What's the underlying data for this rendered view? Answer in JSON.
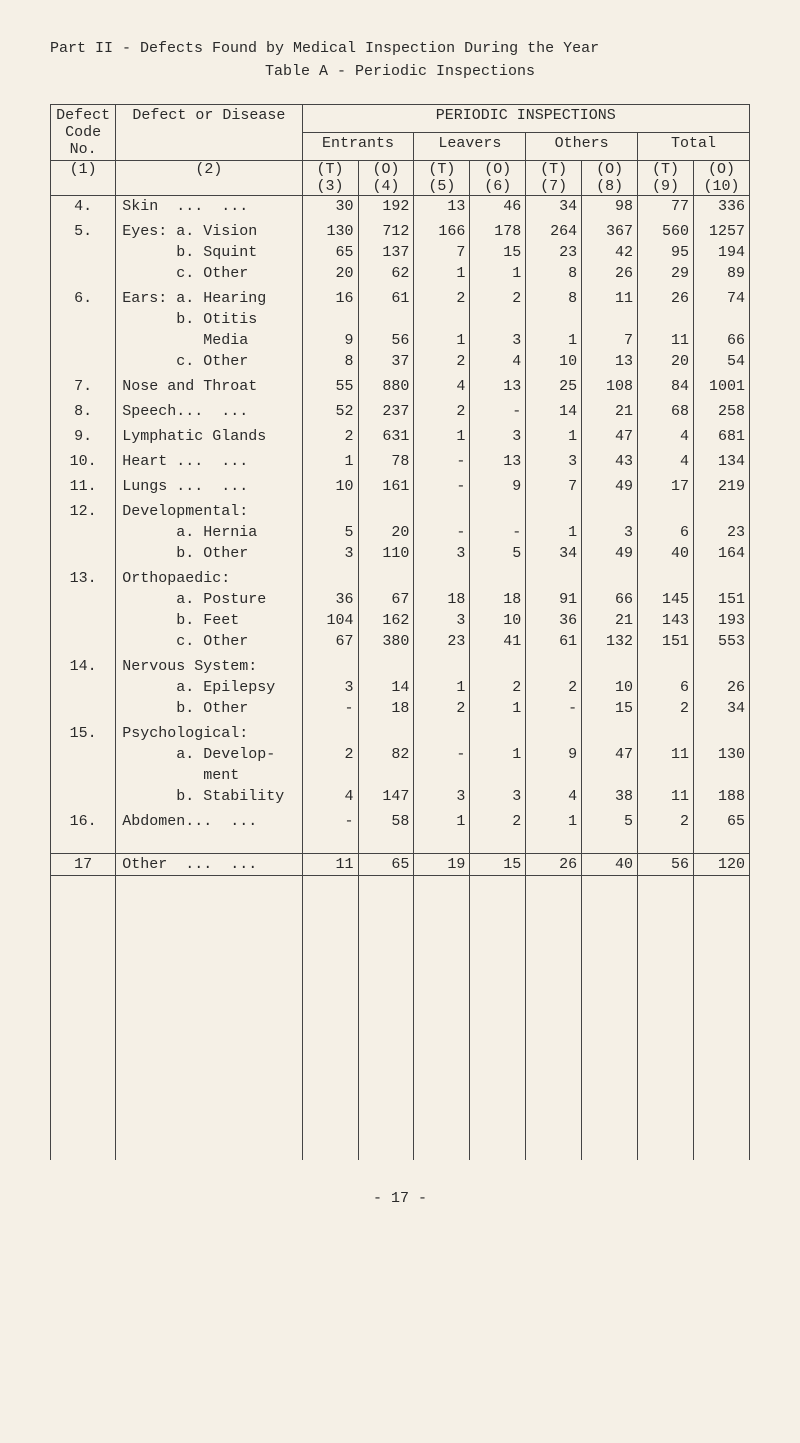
{
  "title": {
    "line1": "Part II - Defects Found by Medical Inspection During the Year",
    "line2": "Table A - Periodic Inspections"
  },
  "headers": {
    "defect_code": "Defect Code No.",
    "defect_disease": "Defect or Disease",
    "periodic": "PERIODIC INSPECTIONS",
    "groups": [
      "Entrants",
      "Leavers",
      "Others",
      "Total"
    ],
    "sub_t": "(T)",
    "sub_o": "(O)",
    "paren": [
      "(1)",
      "(2)",
      "(3)",
      "(4)",
      "(5)",
      "(6)",
      "(7)",
      "(8)",
      "(9)",
      "(10)"
    ]
  },
  "rows": [
    {
      "code": "4.",
      "label": "Skin  ...  ...",
      "v": [
        "30",
        "192",
        "13",
        "46",
        "34",
        "98",
        "77",
        "336"
      ]
    },
    {
      "code": "",
      "label": "",
      "v": [
        "",
        "",
        "",
        "",
        "",
        "",
        "",
        ""
      ]
    },
    {
      "code": "5.",
      "label": "Eyes: a. Vision",
      "v": [
        "130",
        "712",
        "166",
        "178",
        "264",
        "367",
        "560",
        "1257"
      ]
    },
    {
      "code": "",
      "label": "      b. Squint",
      "v": [
        "65",
        "137",
        "7",
        "15",
        "23",
        "42",
        "95",
        "194"
      ]
    },
    {
      "code": "",
      "label": "      c. Other",
      "v": [
        "20",
        "62",
        "1",
        "1",
        "8",
        "26",
        "29",
        "89"
      ]
    },
    {
      "code": "",
      "label": "",
      "v": [
        "",
        "",
        "",
        "",
        "",
        "",
        "",
        ""
      ]
    },
    {
      "code": "6.",
      "label": "Ears: a. Hearing",
      "v": [
        "16",
        "61",
        "2",
        "2",
        "8",
        "11",
        "26",
        "74"
      ]
    },
    {
      "code": "",
      "label": "      b. Otitis",
      "v": [
        "",
        "",
        "",
        "",
        "",
        "",
        "",
        ""
      ]
    },
    {
      "code": "",
      "label": "         Media",
      "v": [
        "9",
        "56",
        "1",
        "3",
        "1",
        "7",
        "11",
        "66"
      ]
    },
    {
      "code": "",
      "label": "      c. Other",
      "v": [
        "8",
        "37",
        "2",
        "4",
        "10",
        "13",
        "20",
        "54"
      ]
    },
    {
      "code": "",
      "label": "",
      "v": [
        "",
        "",
        "",
        "",
        "",
        "",
        "",
        ""
      ]
    },
    {
      "code": "7.",
      "label": "Nose and Throat",
      "v": [
        "55",
        "880",
        "4",
        "13",
        "25",
        "108",
        "84",
        "1001"
      ]
    },
    {
      "code": "",
      "label": "",
      "v": [
        "",
        "",
        "",
        "",
        "",
        "",
        "",
        ""
      ]
    },
    {
      "code": "8.",
      "label": "Speech...  ...",
      "v": [
        "52",
        "237",
        "2",
        "-",
        "14",
        "21",
        "68",
        "258"
      ]
    },
    {
      "code": "",
      "label": "",
      "v": [
        "",
        "",
        "",
        "",
        "",
        "",
        "",
        ""
      ]
    },
    {
      "code": "9.",
      "label": "Lymphatic Glands",
      "v": [
        "2",
        "631",
        "1",
        "3",
        "1",
        "47",
        "4",
        "681"
      ]
    },
    {
      "code": "",
      "label": "",
      "v": [
        "",
        "",
        "",
        "",
        "",
        "",
        "",
        ""
      ]
    },
    {
      "code": "10.",
      "label": "Heart ...  ...",
      "v": [
        "1",
        "78",
        "-",
        "13",
        "3",
        "43",
        "4",
        "134"
      ]
    },
    {
      "code": "",
      "label": "",
      "v": [
        "",
        "",
        "",
        "",
        "",
        "",
        "",
        ""
      ]
    },
    {
      "code": "11.",
      "label": "Lungs ...  ...",
      "v": [
        "10",
        "161",
        "-",
        "9",
        "7",
        "49",
        "17",
        "219"
      ]
    },
    {
      "code": "",
      "label": "",
      "v": [
        "",
        "",
        "",
        "",
        "",
        "",
        "",
        ""
      ]
    },
    {
      "code": "12.",
      "label": "Developmental:",
      "v": [
        "",
        "",
        "",
        "",
        "",
        "",
        "",
        ""
      ]
    },
    {
      "code": "",
      "label": "      a. Hernia",
      "v": [
        "5",
        "20",
        "-",
        "-",
        "1",
        "3",
        "6",
        "23"
      ]
    },
    {
      "code": "",
      "label": "      b. Other",
      "v": [
        "3",
        "110",
        "3",
        "5",
        "34",
        "49",
        "40",
        "164"
      ]
    },
    {
      "code": "",
      "label": "",
      "v": [
        "",
        "",
        "",
        "",
        "",
        "",
        "",
        ""
      ]
    },
    {
      "code": "13.",
      "label": "Orthopaedic:",
      "v": [
        "",
        "",
        "",
        "",
        "",
        "",
        "",
        ""
      ]
    },
    {
      "code": "",
      "label": "      a. Posture",
      "v": [
        "36",
        "67",
        "18",
        "18",
        "91",
        "66",
        "145",
        "151"
      ]
    },
    {
      "code": "",
      "label": "      b. Feet",
      "v": [
        "104",
        "162",
        "3",
        "10",
        "36",
        "21",
        "143",
        "193"
      ]
    },
    {
      "code": "",
      "label": "      c. Other",
      "v": [
        "67",
        "380",
        "23",
        "41",
        "61",
        "132",
        "151",
        "553"
      ]
    },
    {
      "code": "",
      "label": "",
      "v": [
        "",
        "",
        "",
        "",
        "",
        "",
        "",
        ""
      ]
    },
    {
      "code": "14.",
      "label": "Nervous System:",
      "v": [
        "",
        "",
        "",
        "",
        "",
        "",
        "",
        ""
      ]
    },
    {
      "code": "",
      "label": "      a. Epilepsy",
      "v": [
        "3",
        "14",
        "1",
        "2",
        "2",
        "10",
        "6",
        "26"
      ]
    },
    {
      "code": "",
      "label": "      b. Other",
      "v": [
        "-",
        "18",
        "2",
        "1",
        "-",
        "15",
        "2",
        "34"
      ]
    },
    {
      "code": "",
      "label": "",
      "v": [
        "",
        "",
        "",
        "",
        "",
        "",
        "",
        ""
      ]
    },
    {
      "code": "15.",
      "label": "Psychological:",
      "v": [
        "",
        "",
        "",
        "",
        "",
        "",
        "",
        ""
      ]
    },
    {
      "code": "",
      "label": "      a. Develop-",
      "v": [
        "2",
        "82",
        "-",
        "1",
        "9",
        "47",
        "11",
        "130"
      ]
    },
    {
      "code": "",
      "label": "         ment",
      "v": [
        "",
        "",
        "",
        "",
        "",
        "",
        "",
        ""
      ]
    },
    {
      "code": "",
      "label": "      b. Stability",
      "v": [
        "4",
        "147",
        "3",
        "3",
        "4",
        "38",
        "11",
        "188"
      ]
    },
    {
      "code": "",
      "label": "",
      "v": [
        "",
        "",
        "",
        "",
        "",
        "",
        "",
        ""
      ]
    },
    {
      "code": "16.",
      "label": "Abdomen...  ...",
      "v": [
        "-",
        "58",
        "1",
        "2",
        "1",
        "5",
        "2",
        "65"
      ]
    }
  ],
  "row17": {
    "code": "17",
    "label": "Other  ...  ...",
    "v": [
      "11",
      "65",
      "19",
      "15",
      "26",
      "40",
      "56",
      "120"
    ]
  },
  "footer": "- 17 -"
}
